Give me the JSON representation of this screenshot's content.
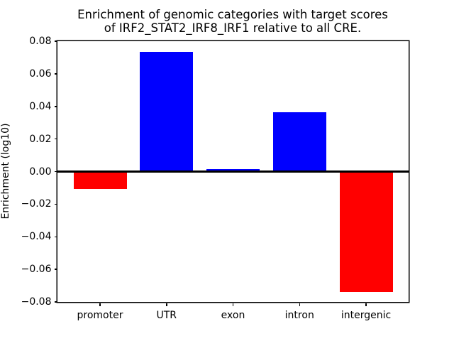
{
  "chart_data": {
    "type": "bar",
    "title": "Enrichment of genomic categories with target scores\nof IRF2_STAT2_IRF8_IRF1 relative to all CRE.",
    "title_line1": "Enrichment of genomic categories with target scores",
    "title_line2": "of IRF2_STAT2_IRF8_IRF1 relative to all CRE.",
    "xlabel": "",
    "ylabel": "Enrichment (log10)",
    "categories": [
      "promoter",
      "UTR",
      "exon",
      "intron",
      "intergenic"
    ],
    "values": [
      -0.0108,
      0.0735,
      0.0016,
      0.0366,
      -0.0738
    ],
    "bar_colors": [
      "#ff0000",
      "#0000ff",
      "#0000ff",
      "#0000ff",
      "#ff0000"
    ],
    "positive_color": "#0000ff",
    "negative_color": "#ff0000",
    "ylim": [
      -0.08,
      0.08
    ],
    "yticks": [
      0.08,
      0.06,
      0.04,
      0.02,
      0.0,
      -0.02,
      -0.04,
      -0.06,
      -0.08
    ],
    "ytick_labels": [
      "0.08",
      "0.06",
      "0.04",
      "0.02",
      "0.00",
      "−0.02",
      "−0.04",
      "−0.06",
      "−0.08"
    ],
    "bar_rel_width": 0.8,
    "grid": false,
    "legend": false,
    "zero_line": true,
    "axis_color": "#000000",
    "background_color": "#ffffff"
  }
}
